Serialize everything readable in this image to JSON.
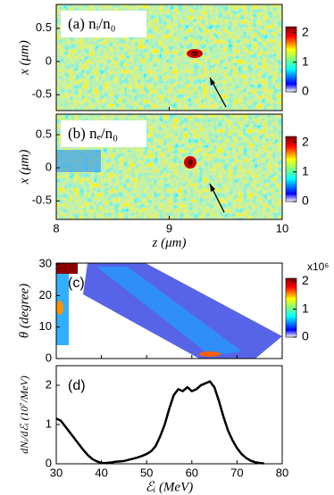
{
  "chart_data": [
    {
      "type": "heatmap",
      "label": "(a) nᵢ/n₀",
      "ylabel": "x (μm)",
      "xlim": [
        8,
        10
      ],
      "xticks": [
        8,
        9,
        10
      ],
      "ylim": [
        -0.74,
        0.86
      ],
      "yticks": [
        -0.5,
        0,
        0.5
      ],
      "clim": [
        0,
        2.2
      ],
      "cticks": [
        0,
        1,
        2
      ]
    },
    {
      "type": "heatmap",
      "label": "(b) nₑ/n₀",
      "ylabel": "x (μm)",
      "xlabel": "z (μm)",
      "xlim": [
        8,
        10
      ],
      "xticks": [
        8,
        9,
        10
      ],
      "ylim": [
        -0.78,
        0.81
      ],
      "yticks": [
        -0.5,
        0,
        0.5
      ],
      "clim": [
        0,
        2.2
      ],
      "cticks": [
        0,
        1,
        2
      ]
    },
    {
      "type": "heatmap",
      "label": "(c)",
      "ylabel": "θ (degree)",
      "xlim": [
        30,
        80
      ],
      "xticks": [
        30,
        40,
        50,
        60,
        70,
        80
      ],
      "ylim": [
        0,
        30.3
      ],
      "yticks": [
        0,
        10,
        20,
        30
      ],
      "clim": [
        0,
        2.1
      ],
      "cticks": [
        0,
        1,
        2
      ],
      "cscale": "x10⁶"
    },
    {
      "type": "line",
      "label": "(d)",
      "ylabel": "dNᵢ/dℰᵢ (10⁷/MeV)",
      "xlabel": "ℰᵢ (MeV)",
      "color": "#000000",
      "x": [
        30,
        31,
        32,
        33,
        34,
        35,
        36,
        37,
        38,
        39,
        40,
        41,
        42,
        43,
        44,
        45,
        46,
        47,
        48,
        49,
        50,
        51,
        52,
        53,
        54,
        55,
        56,
        57,
        58,
        59,
        60,
        61,
        62,
        63,
        64,
        65,
        66,
        67,
        68,
        69,
        70,
        71,
        72,
        73,
        74,
        75,
        76
      ],
      "values": [
        1.15,
        1.1,
        0.95,
        0.8,
        0.65,
        0.5,
        0.35,
        0.22,
        0.12,
        0.06,
        0.02,
        0.02,
        0.03,
        0.05,
        0.06,
        0.07,
        0.1,
        0.13,
        0.16,
        0.2,
        0.25,
        0.32,
        0.45,
        0.7,
        1.0,
        1.4,
        1.75,
        1.9,
        1.85,
        1.95,
        1.85,
        1.9,
        2.0,
        2.05,
        2.1,
        1.95,
        1.6,
        1.2,
        0.85,
        0.6,
        0.4,
        0.25,
        0.15,
        0.08,
        0.04,
        0.02,
        0.01
      ],
      "xlim": [
        30,
        80
      ],
      "xticks": [
        30,
        40,
        50,
        60,
        70,
        80
      ],
      "ylim": [
        0,
        2.5
      ],
      "yticks": [
        0,
        1,
        2
      ]
    }
  ]
}
